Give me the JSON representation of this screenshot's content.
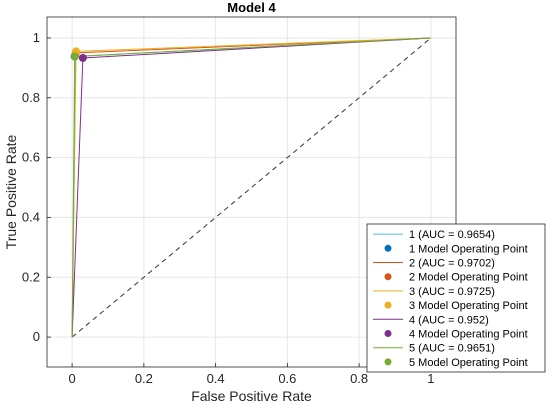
{
  "chart_data": {
    "type": "line",
    "title": "Model 4",
    "xlabel": "False Positive Rate",
    "ylabel": "True Positive Rate",
    "xlim": [
      -0.07,
      1.07
    ],
    "ylim": [
      -0.1,
      1.07
    ],
    "xticks": [
      0,
      0.2,
      0.4,
      0.6,
      0.8,
      1
    ],
    "yticks": [
      0,
      0.2,
      0.4,
      0.6,
      0.8,
      1
    ],
    "xtick_labels": [
      "0",
      "0.2",
      "0.4",
      "0.6",
      "0.8",
      "1"
    ],
    "ytick_labels": [
      "0",
      "0.2",
      "0.4",
      "0.6",
      "0.8",
      "1"
    ],
    "grid": true,
    "legend_placement": "bottom-right",
    "series": [
      {
        "name": "1 (AUC = 0.9654)",
        "color": "#0072BD",
        "line_color": "#4DBEEE",
        "x": [
          0,
          0.007,
          1
        ],
        "y": [
          0,
          0.938,
          1
        ],
        "op_name": "1 Model Operating Point",
        "op": [
          0.007,
          0.938
        ]
      },
      {
        "name": "2 (AUC = 0.9702)",
        "color": "#D95319",
        "line_color": "#D95319",
        "x": [
          0,
          0.01,
          1
        ],
        "y": [
          0,
          0.95,
          1
        ],
        "op_name": "2 Model Operating Point",
        "op": [
          0.01,
          0.95
        ]
      },
      {
        "name": "3 (AUC = 0.9725)",
        "color": "#EDB120",
        "line_color": "#EDB120",
        "x": [
          0,
          0.011,
          1
        ],
        "y": [
          0,
          0.955,
          1
        ],
        "op_name": "3 Model Operating Point",
        "op": [
          0.011,
          0.955
        ]
      },
      {
        "name": "4 (AUC = 0.952)",
        "color": "#7E2F8E",
        "line_color": "#7E2F8E",
        "x": [
          0,
          0.03,
          1
        ],
        "y": [
          0,
          0.933,
          1
        ],
        "op_name": "4 Model Operating Point",
        "op": [
          0.03,
          0.933
        ]
      },
      {
        "name": "5 (AUC = 0.9651)",
        "color": "#77AC30",
        "line_color": "#77AC30",
        "x": [
          0,
          0.008,
          1
        ],
        "y": [
          0,
          0.938,
          1
        ],
        "op_name": "5 Model Operating Point",
        "op": [
          0.008,
          0.938
        ]
      }
    ],
    "reference_line": {
      "x": [
        0,
        1
      ],
      "y": [
        0,
        1
      ],
      "style": "dashed",
      "color": "#333333"
    }
  }
}
